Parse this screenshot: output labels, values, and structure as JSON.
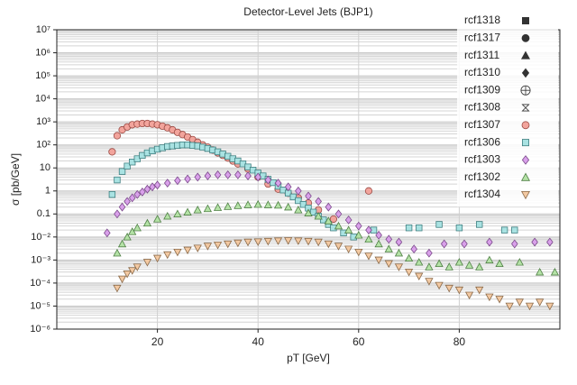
{
  "chart_data": {
    "type": "scatter",
    "title": "Detector-Level Jets (BJP1)",
    "x_label": "pT [GeV]",
    "y_label": "σ [pb/GeV]",
    "xlim": [
      0,
      100
    ],
    "xticks": [
      20,
      40,
      60,
      80
    ],
    "ylim": [
      1e-06,
      10000000
    ],
    "log_y": true,
    "grid": true,
    "legend": "upper right",
    "yticks": [
      {
        "value": 1e-06,
        "label": "10⁻⁶"
      },
      {
        "value": 1e-05,
        "label": "10⁻⁵"
      },
      {
        "value": 0.0001,
        "label": "10⁻⁴"
      },
      {
        "value": 0.001,
        "label": "10⁻³"
      },
      {
        "value": 0.01,
        "label": "10⁻²"
      },
      0.1,
      1,
      10,
      {
        "value": 100,
        "label": "10²"
      },
      {
        "value": 1000,
        "label": "10³"
      },
      {
        "value": 10000,
        "label": "10⁴"
      },
      {
        "value": 100000,
        "label": "10⁵"
      },
      {
        "value": 1000000,
        "label": "10⁶"
      },
      {
        "value": 10000000,
        "label": "10⁷"
      }
    ],
    "series": [
      {
        "name": "rcf1318",
        "marker": "square",
        "color": "#333333",
        "edge": "#333333",
        "x": [],
        "values": []
      },
      {
        "name": "rcf1317",
        "marker": "circle",
        "color": "#333333",
        "edge": "#333333",
        "x": [],
        "values": []
      },
      {
        "name": "rcf1311",
        "marker": "triangle-up",
        "color": "#333333",
        "edge": "#333333",
        "x": [],
        "values": []
      },
      {
        "name": "rcf1310",
        "marker": "diamond",
        "color": "#333333",
        "edge": "#333333",
        "x": [],
        "values": []
      },
      {
        "name": "rcf1309",
        "marker": "circle-plus",
        "color": "none",
        "edge": "#333333",
        "x": [],
        "values": []
      },
      {
        "name": "rcf1308",
        "marker": "hourglass",
        "color": "none",
        "edge": "#333333",
        "x": [],
        "values": []
      },
      {
        "name": "rcf1307",
        "marker": "circle",
        "color": "#f2a49c",
        "edge": "#9a4a44",
        "x": [
          11,
          12,
          13,
          14,
          15,
          16,
          17,
          18,
          19,
          20,
          21,
          22,
          23,
          24,
          25,
          26,
          27,
          28,
          29,
          30,
          31,
          32,
          33,
          34,
          35,
          36,
          38,
          40,
          42,
          44,
          46,
          48,
          50,
          52,
          55,
          62
        ],
        "values": [
          50,
          250,
          450,
          600,
          750,
          800,
          850,
          850,
          800,
          750,
          650,
          550,
          450,
          350,
          280,
          220,
          170,
          130,
          100,
          80,
          60,
          45,
          35,
          27,
          20,
          15,
          9,
          4,
          2,
          1.2,
          0.8,
          0.5,
          0.3,
          0.15,
          0.06,
          1
        ]
      },
      {
        "name": "rcf1306",
        "marker": "square",
        "color": "#a9e2e2",
        "edge": "#3f7f80",
        "x": [
          11,
          12,
          13,
          14,
          15,
          16,
          17,
          18,
          19,
          20,
          21,
          22,
          23,
          24,
          25,
          26,
          27,
          28,
          29,
          30,
          31,
          32,
          33,
          34,
          35,
          36,
          37,
          38,
          39,
          40,
          41,
          42,
          43,
          44,
          45,
          46,
          47,
          48,
          49,
          50,
          51,
          52,
          53,
          54,
          55,
          57,
          59,
          63,
          70,
          72,
          76,
          80,
          84,
          89,
          91
        ],
        "values": [
          0.7,
          3,
          7,
          12,
          18,
          25,
          35,
          45,
          55,
          65,
          75,
          85,
          90,
          95,
          100,
          100,
          95,
          90,
          80,
          70,
          60,
          50,
          40,
          32,
          25,
          20,
          15,
          11,
          8,
          6,
          4.5,
          3.2,
          2.3,
          1.6,
          1.1,
          0.8,
          0.55,
          0.38,
          0.26,
          0.18,
          0.12,
          0.08,
          0.055,
          0.035,
          0.025,
          0.015,
          0.01,
          0.02,
          0.025,
          0.025,
          0.035,
          0.025,
          0.035,
          0.02,
          0.02
        ]
      },
      {
        "name": "rcf1303",
        "marker": "diamond",
        "color": "#d9a0ea",
        "edge": "#7a4a8a",
        "x": [
          10,
          12,
          13,
          14,
          15,
          16,
          17,
          18,
          19,
          20,
          22,
          24,
          26,
          28,
          30,
          32,
          34,
          36,
          38,
          40,
          42,
          44,
          46,
          48,
          50,
          52,
          54,
          56,
          58,
          60,
          62,
          64,
          66,
          68,
          71,
          74,
          77,
          81,
          86,
          91,
          95,
          98
        ],
        "values": [
          0.015,
          0.1,
          0.2,
          0.35,
          0.5,
          0.7,
          0.9,
          1.2,
          1.5,
          1.8,
          2.2,
          2.8,
          3.3,
          4,
          4.5,
          5,
          5,
          5,
          4.5,
          4,
          3,
          2.2,
          1.5,
          1,
          0.6,
          0.35,
          0.2,
          0.1,
          0.055,
          0.03,
          0.02,
          0.012,
          0.008,
          0.006,
          0.003,
          0.002,
          0.005,
          0.005,
          0.006,
          0.005,
          0.006,
          0.006
        ]
      },
      {
        "name": "rcf1302",
        "marker": "triangle-up",
        "color": "#b4e2a6",
        "edge": "#4f7f45",
        "x": [
          12,
          13,
          14,
          15,
          16,
          18,
          20,
          22,
          24,
          26,
          28,
          30,
          32,
          34,
          36,
          38,
          40,
          42,
          44,
          46,
          48,
          50,
          52,
          54,
          56,
          58,
          60,
          62,
          64,
          66,
          68,
          70,
          72,
          74,
          76,
          78,
          80,
          82,
          84,
          86,
          88,
          92,
          96,
          99
        ],
        "values": [
          0.002,
          0.005,
          0.01,
          0.017,
          0.025,
          0.04,
          0.06,
          0.08,
          0.1,
          0.12,
          0.15,
          0.17,
          0.19,
          0.21,
          0.23,
          0.25,
          0.26,
          0.25,
          0.24,
          0.2,
          0.15,
          0.11,
          0.08,
          0.05,
          0.03,
          0.02,
          0.012,
          0.008,
          0.005,
          0.003,
          0.002,
          0.0012,
          0.0008,
          0.0005,
          0.0007,
          0.0005,
          0.0008,
          0.0006,
          0.0005,
          0.001,
          0.0007,
          0.0008,
          0.0003,
          0.0003
        ]
      },
      {
        "name": "rcf1304",
        "marker": "triangle-down",
        "color": "#f3c9a2",
        "edge": "#8a6a4a",
        "x": [
          12,
          13,
          14,
          15,
          16,
          18,
          20,
          22,
          24,
          26,
          28,
          30,
          32,
          34,
          36,
          38,
          40,
          42,
          44,
          46,
          48,
          50,
          52,
          54,
          56,
          58,
          60,
          62,
          64,
          66,
          68,
          70,
          72,
          74,
          76,
          78,
          80,
          82,
          84,
          86,
          88,
          90,
          92,
          94,
          96,
          98
        ],
        "values": [
          6e-05,
          0.00015,
          0.00025,
          0.00035,
          0.0005,
          0.0008,
          0.0012,
          0.0017,
          0.0022,
          0.0027,
          0.0033,
          0.004,
          0.0045,
          0.005,
          0.0055,
          0.006,
          0.0062,
          0.0065,
          0.0068,
          0.007,
          0.0068,
          0.0065,
          0.006,
          0.005,
          0.004,
          0.003,
          0.0022,
          0.0015,
          0.001,
          0.0007,
          0.0005,
          0.0003,
          0.0002,
          0.00012,
          8e-05,
          6e-05,
          5e-05,
          3e-05,
          5e-05,
          2.5e-05,
          2e-05,
          1e-05,
          1.5e-05,
          1e-05,
          1.5e-05,
          1e-05
        ]
      }
    ]
  }
}
